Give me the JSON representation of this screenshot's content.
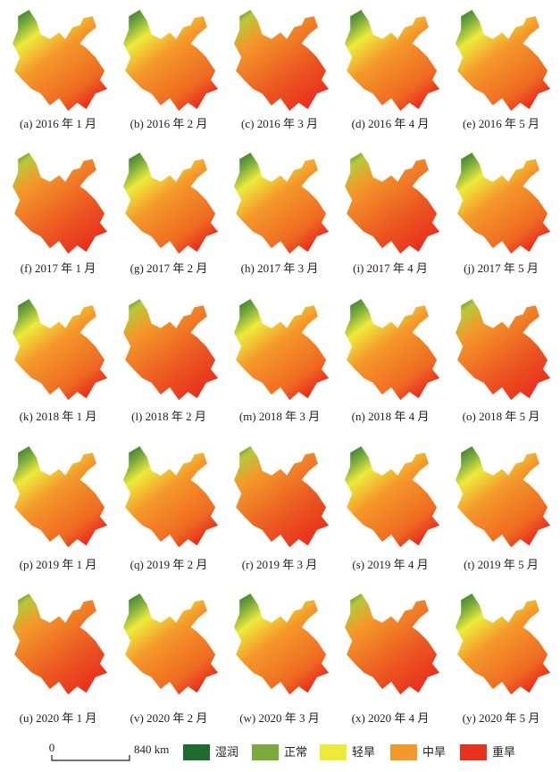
{
  "captions": [
    "(a) 2016 年 1 月",
    "(b) 2016 年 2 月",
    "(c) 2016 年 3 月",
    "(d) 2016 年 4 月",
    "(e) 2016 年 5 月",
    "(f) 2017 年 1 月",
    "(g) 2017 年 2 月",
    "(h) 2017 年 3 月",
    "(i) 2017 年 4 月",
    "(j) 2017 年 5 月",
    "(k) 2018 年 1 月",
    "(l) 2018 年 2 月",
    "(m) 2018 年 3 月",
    "(n) 2018 年 4 月",
    "(o) 2018 年 5 月",
    "(p) 2019 年 1 月",
    "(q) 2019 年 2 月",
    "(r) 2019 年 3 月",
    "(s) 2019 年 4 月",
    "(t) 2019 年 5 月",
    "(u) 2020 年 1 月",
    "(v) 2020 年 2 月",
    "(w) 2020 年 3 月",
    "(x) 2020 年 4 月",
    "(y) 2020 年 5 月"
  ],
  "scale_bar": {
    "start": "0",
    "end": "840 km"
  },
  "legend": [
    {
      "label": "湿润",
      "color": "#1e6b2e"
    },
    {
      "label": "正常",
      "color": "#7aab3c"
    },
    {
      "label": "轻旱",
      "color": "#eeea3c"
    },
    {
      "label": "中旱",
      "color": "#f4982a"
    },
    {
      "label": "重旱",
      "color": "#e8321e"
    }
  ]
}
